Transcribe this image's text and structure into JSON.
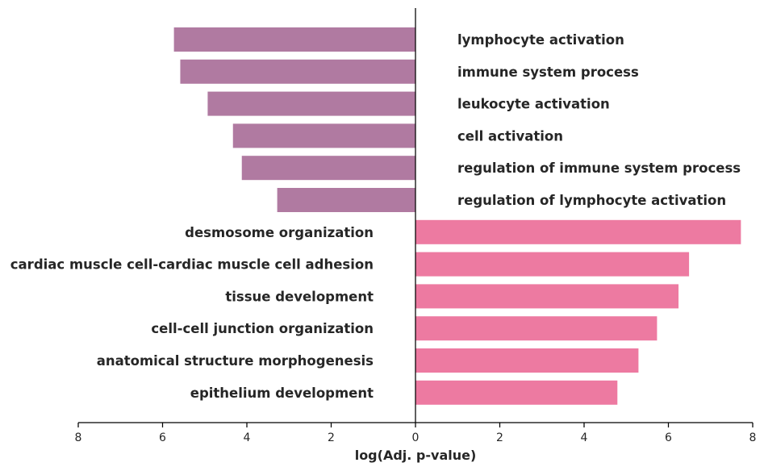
{
  "chart_data": {
    "type": "bar",
    "orientation": "horizontal-diverging",
    "xlabel": "log(Adj. p-value)",
    "xlim": [
      -8,
      8
    ],
    "x_ticks": [
      -8,
      -6,
      -4,
      -2,
      0,
      2,
      4,
      6,
      8
    ],
    "x_tick_labels": [
      "8",
      "6",
      "4",
      "2",
      "0",
      "2",
      "4",
      "6",
      "8"
    ],
    "grid": false,
    "colors": {
      "left": "#b07aa1",
      "right": "#ed7aa1"
    },
    "categories": [
      "lymphocyte activation",
      "immune system process",
      "leukocyte activation",
      "cell activation",
      "regulation of immune system process",
      "regulation of lymphocyte activation",
      "desmosome organization",
      "cardiac muscle cell-cardiac muscle cell adhesion",
      "tissue development",
      "cell-cell junction organization",
      "anatomical structure morphogenesis",
      "epithelium development"
    ],
    "values": [
      -5.73,
      -5.58,
      -4.93,
      -4.33,
      -4.12,
      -3.28,
      7.72,
      6.49,
      6.24,
      5.73,
      5.29,
      4.79
    ]
  }
}
